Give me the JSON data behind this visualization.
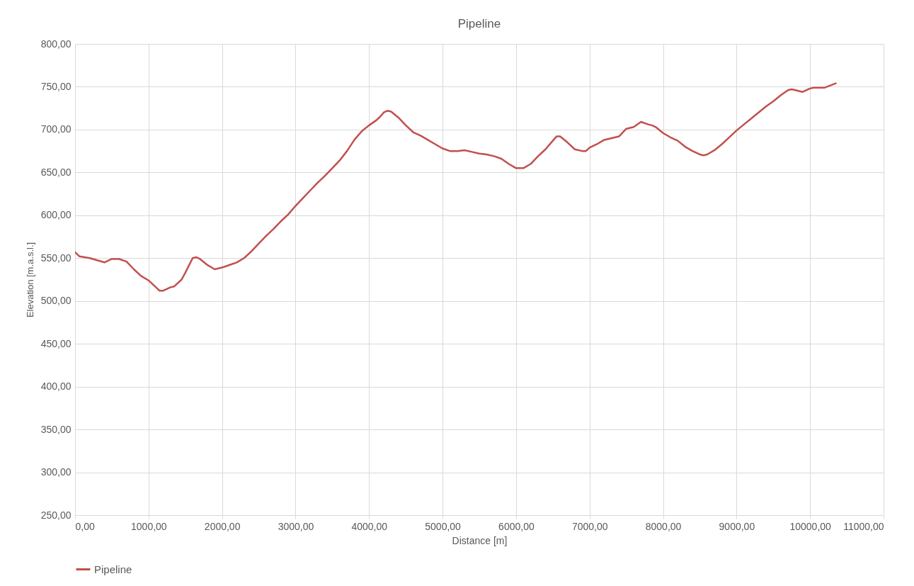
{
  "chart_data": {
    "type": "line",
    "title": "Pipeline",
    "xlabel": "Distance [m]",
    "ylabel": "Elevation [m.a.s.l.]",
    "x": [
      0,
      60,
      200,
      400,
      500,
      600,
      700,
      800,
      900,
      1000,
      1100,
      1150,
      1200,
      1300,
      1350,
      1450,
      1500,
      1600,
      1650,
      1700,
      1800,
      1900,
      1950,
      2000,
      2100,
      2200,
      2300,
      2400,
      2500,
      2600,
      2700,
      2800,
      2900,
      3000,
      3100,
      3200,
      3300,
      3400,
      3500,
      3600,
      3700,
      3800,
      3900,
      4000,
      4100,
      4150,
      4200,
      4250,
      4300,
      4400,
      4500,
      4600,
      4700,
      4800,
      4900,
      5000,
      5100,
      5200,
      5300,
      5400,
      5500,
      5600,
      5700,
      5800,
      5900,
      6000,
      6100,
      6200,
      6300,
      6400,
      6500,
      6550,
      6600,
      6700,
      6800,
      6900,
      6950,
      7000,
      7100,
      7200,
      7300,
      7400,
      7500,
      7600,
      7700,
      7800,
      7850,
      7900,
      8000,
      8100,
      8200,
      8300,
      8400,
      8500,
      8550,
      8600,
      8700,
      8800,
      8900,
      9000,
      9100,
      9200,
      9300,
      9400,
      9500,
      9600,
      9700,
      9750,
      9800,
      9900,
      10000,
      10050,
      10200,
      10350
    ],
    "series": [
      {
        "name": "Pipeline",
        "color": "#c0504d",
        "values": [
          557,
          552,
          550,
          545,
          549,
          549,
          546,
          537,
          529,
          524,
          516,
          512,
          512,
          516,
          517,
          525,
          533,
          550,
          551,
          549,
          542,
          537,
          538,
          539,
          542,
          545,
          550,
          558,
          567,
          576,
          584,
          593,
          601,
          611,
          620,
          629,
          638,
          646,
          655,
          664,
          675,
          688,
          698,
          705,
          711,
          715,
          720,
          722,
          721,
          714,
          705,
          697,
          693,
          688,
          683,
          678,
          675,
          675,
          676,
          674,
          672,
          671,
          669,
          666,
          660,
          655,
          655,
          660,
          669,
          677,
          687,
          692,
          692,
          685,
          677,
          675,
          675,
          679,
          683,
          688,
          690,
          692,
          701,
          703,
          709,
          706,
          705,
          703,
          696,
          691,
          687,
          680,
          675,
          671,
          670,
          671,
          676,
          683,
          691,
          699,
          706,
          713,
          720,
          727,
          733,
          740,
          746,
          747,
          746,
          744,
          748,
          749,
          749,
          754
        ]
      }
    ],
    "xlim": [
      0,
      11000
    ],
    "ylim": [
      250,
      800
    ],
    "xticks": [
      {
        "value": 0,
        "label": "0,00"
      },
      {
        "value": 1000,
        "label": "1000,00"
      },
      {
        "value": 2000,
        "label": "2000,00"
      },
      {
        "value": 3000,
        "label": "3000,00"
      },
      {
        "value": 4000,
        "label": "4000,00"
      },
      {
        "value": 5000,
        "label": "5000,00"
      },
      {
        "value": 6000,
        "label": "6000,00"
      },
      {
        "value": 7000,
        "label": "7000,00"
      },
      {
        "value": 8000,
        "label": "8000,00"
      },
      {
        "value": 9000,
        "label": "9000,00"
      },
      {
        "value": 10000,
        "label": "10000,00"
      },
      {
        "value": 11000,
        "label": "11000,00"
      }
    ],
    "yticks": [
      {
        "value": 250,
        "label": "250,00"
      },
      {
        "value": 300,
        "label": "300,00"
      },
      {
        "value": 350,
        "label": "350,00"
      },
      {
        "value": 400,
        "label": "400,00"
      },
      {
        "value": 450,
        "label": "450,00"
      },
      {
        "value": 500,
        "label": "500,00"
      },
      {
        "value": 550,
        "label": "550,00"
      },
      {
        "value": 600,
        "label": "600,00"
      },
      {
        "value": 650,
        "label": "650,00"
      },
      {
        "value": 700,
        "label": "700,00"
      },
      {
        "value": 750,
        "label": "750,00"
      },
      {
        "value": 800,
        "label": "800,00"
      }
    ],
    "grid": true,
    "legend": "bottom",
    "marker": "none",
    "line_style": "solid"
  }
}
